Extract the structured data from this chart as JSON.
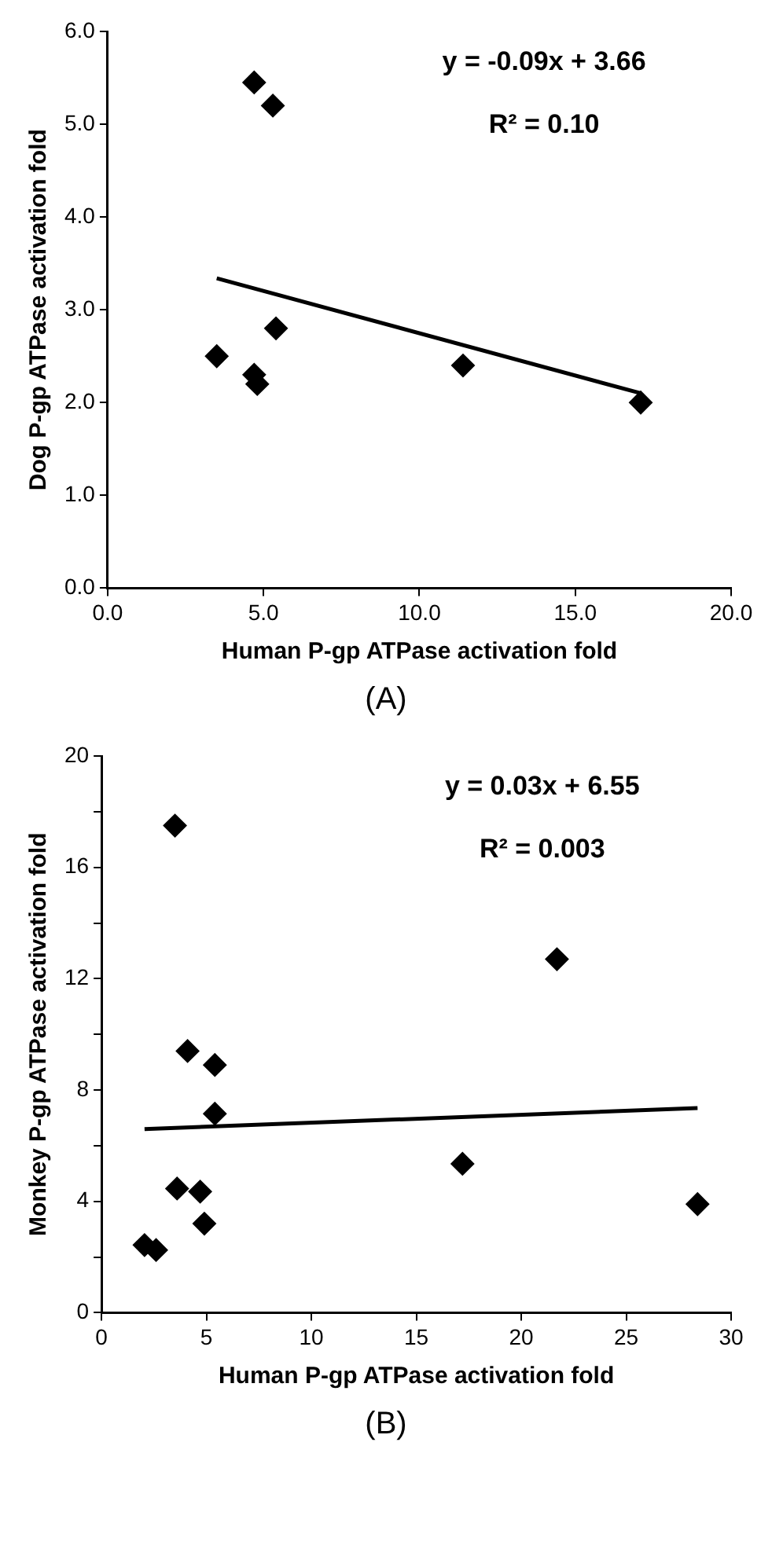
{
  "chart_data": [
    {
      "type": "scatter",
      "xlabel": "Human P-gp ATPase activation fold",
      "ylabel": "Dog P-gp ATPase activation fold",
      "xlim": [
        0,
        20
      ],
      "xticks": [
        {
          "value": 0,
          "label": "0.0"
        },
        {
          "value": 5,
          "label": "5.0"
        },
        {
          "value": 10,
          "label": "10.0"
        },
        {
          "value": 15,
          "label": "15.0"
        },
        {
          "value": 20,
          "label": "20.0"
        }
      ],
      "ylim": [
        0,
        6
      ],
      "yticks": [
        {
          "value": 0,
          "label": "0.0"
        },
        {
          "value": 1,
          "label": "1.0"
        },
        {
          "value": 2,
          "label": "2.0"
        },
        {
          "value": 3,
          "label": "3.0"
        },
        {
          "value": 4,
          "label": "4.0"
        },
        {
          "value": 5,
          "label": "5.0"
        },
        {
          "value": 6,
          "label": "6.0"
        }
      ],
      "legend": false,
      "series": [
        {
          "marker": "diamond",
          "color": "#000000",
          "x": [
            3.5,
            4.7,
            5.3,
            5.4,
            4.7,
            4.8,
            11.4,
            17.1
          ],
          "values": [
            2.5,
            5.45,
            5.2,
            2.8,
            2.3,
            2.2,
            2.4,
            2.0
          ]
        },
        {
          "type": "line",
          "marker": "none",
          "color": "#000000",
          "x": [
            3.5,
            17.1
          ],
          "values": [
            3.34,
            2.1
          ]
        }
      ],
      "annotations": [
        "y = -0.09x + 3.66",
        "R² = 0.10",
        "(A)"
      ]
    },
    {
      "type": "scatter",
      "xlabel": "Human P-gp ATPase activation fold",
      "ylabel": "Monkey P-gp ATPase activation fold",
      "xlim": [
        0,
        30
      ],
      "xticks": [
        0,
        5,
        10,
        15,
        20,
        25,
        30
      ],
      "ylim": [
        0,
        20
      ],
      "yticks": [
        0,
        {
          "value": 2,
          "label": null
        },
        4,
        {
          "value": 6,
          "label": null
        },
        8,
        {
          "value": 10,
          "label": null
        },
        12,
        {
          "value": 14,
          "label": null
        },
        16,
        {
          "value": 18,
          "label": null
        },
        20
      ],
      "legend": false,
      "series": [
        {
          "marker": "diamond",
          "color": "#000000",
          "x": [
            2.05,
            2.6,
            3.5,
            3.6,
            4.1,
            4.7,
            4.9,
            5.4,
            5.4,
            17.2,
            21.7,
            28.4
          ],
          "values": [
            2.43,
            2.25,
            17.5,
            4.46,
            9.4,
            4.35,
            3.2,
            8.9,
            7.15,
            5.35,
            12.7,
            3.9
          ]
        },
        {
          "type": "line",
          "marker": "none",
          "color": "#000000",
          "x": [
            2.05,
            28.4
          ],
          "values": [
            6.6,
            7.35
          ]
        }
      ],
      "annotations": [
        "y = 0.03x + 6.55",
        "R² = 0.003",
        "(B)"
      ]
    }
  ]
}
